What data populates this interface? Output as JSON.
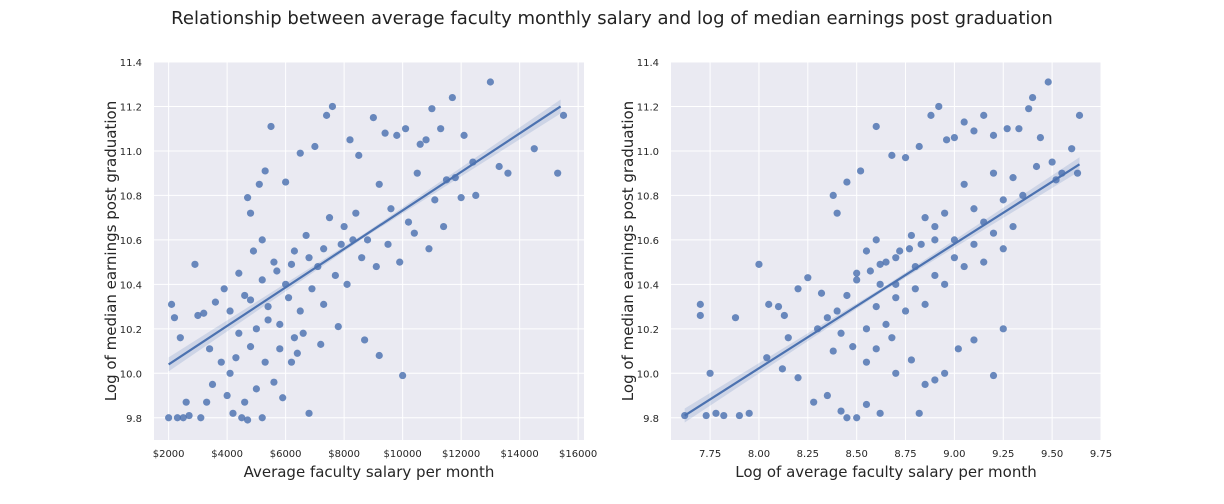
{
  "figure": {
    "title": "Relationship between average faculty monthly salary and log of median earnings post graduation"
  },
  "style": {
    "background": "#eaeaf2",
    "grid": "#ffffff",
    "point_color": "#4c72b0",
    "line_color": "#4c72b0",
    "ci_color": "#4c72b0"
  },
  "chart_data": [
    {
      "type": "scatter",
      "title": "",
      "xlabel": "Average faculty salary per month",
      "ylabel": "Log of median earnings post graduation",
      "xlim": [
        1500,
        16200
      ],
      "ylim": [
        9.7,
        11.4
      ],
      "xticks": [
        2000,
        4000,
        6000,
        8000,
        10000,
        12000,
        14000,
        16000
      ],
      "xtick_labels": [
        "$2000",
        "$4000",
        "$6000",
        "$8000",
        "$10000",
        "$12000",
        "$14000",
        "$16000"
      ],
      "yticks": [
        9.8,
        10.0,
        10.2,
        10.4,
        10.6,
        10.8,
        11.0,
        11.2,
        11.4
      ],
      "ytick_labels": [
        "9.8",
        "10.0",
        "10.2",
        "10.4",
        "10.6",
        "10.8",
        "11.0",
        "11.2",
        "11.4"
      ],
      "grid": true,
      "regression": {
        "x1": 2000,
        "y1": 10.04,
        "x2": 15400,
        "y2": 11.2
      },
      "points": [
        [
          2000,
          9.8
        ],
        [
          2300,
          9.8
        ],
        [
          2500,
          9.8
        ],
        [
          2700,
          9.81
        ],
        [
          3100,
          9.8
        ],
        [
          4200,
          9.82
        ],
        [
          4500,
          9.8
        ],
        [
          4700,
          9.79
        ],
        [
          5200,
          9.8
        ],
        [
          6800,
          9.82
        ],
        [
          2100,
          10.31
        ],
        [
          2900,
          10.49
        ],
        [
          3200,
          10.27
        ],
        [
          3600,
          10.32
        ],
        [
          3900,
          10.38
        ],
        [
          3400,
          10.11
        ],
        [
          3800,
          10.05
        ],
        [
          4100,
          10.0
        ],
        [
          3500,
          9.95
        ],
        [
          4000,
          9.9
        ],
        [
          4600,
          9.87
        ],
        [
          5000,
          9.93
        ],
        [
          3300,
          9.87
        ],
        [
          2600,
          9.87
        ],
        [
          4300,
          10.07
        ],
        [
          2400,
          10.16
        ],
        [
          2200,
          10.25
        ],
        [
          3000,
          10.26
        ],
        [
          4800,
          10.33
        ],
        [
          5400,
          10.24
        ],
        [
          5500,
          11.11
        ],
        [
          5100,
          10.85
        ],
        [
          4700,
          10.79
        ],
        [
          4800,
          10.72
        ],
        [
          5300,
          10.91
        ],
        [
          6000,
          10.86
        ],
        [
          6500,
          10.99
        ],
        [
          7000,
          11.02
        ],
        [
          7400,
          11.16
        ],
        [
          7600,
          11.2
        ],
        [
          8200,
          11.05
        ],
        [
          8500,
          10.98
        ],
        [
          9000,
          11.15
        ],
        [
          9400,
          11.08
        ],
        [
          9800,
          11.07
        ],
        [
          10100,
          11.1
        ],
        [
          10600,
          11.03
        ],
        [
          10800,
          11.05
        ],
        [
          11000,
          11.19
        ],
        [
          11300,
          11.1
        ],
        [
          11700,
          11.24
        ],
        [
          12100,
          11.07
        ],
        [
          12400,
          10.95
        ],
        [
          13000,
          11.31
        ],
        [
          13600,
          10.9
        ],
        [
          14500,
          11.01
        ],
        [
          15300,
          10.9
        ],
        [
          15500,
          11.16
        ],
        [
          11500,
          10.87
        ],
        [
          12000,
          10.79
        ],
        [
          10000,
          9.99
        ],
        [
          9200,
          10.08
        ],
        [
          8700,
          10.15
        ],
        [
          7200,
          10.13
        ],
        [
          6600,
          10.18
        ],
        [
          6200,
          10.05
        ],
        [
          5600,
          9.96
        ],
        [
          5900,
          9.89
        ],
        [
          6400,
          10.09
        ],
        [
          7800,
          10.21
        ],
        [
          4400,
          10.45
        ],
        [
          4900,
          10.55
        ],
        [
          5200,
          10.6
        ],
        [
          5600,
          10.5
        ],
        [
          6000,
          10.4
        ],
        [
          6300,
          10.55
        ],
        [
          6700,
          10.62
        ],
        [
          7100,
          10.48
        ],
        [
          7500,
          10.7
        ],
        [
          8000,
          10.66
        ],
        [
          8400,
          10.72
        ],
        [
          8800,
          10.6
        ],
        [
          9200,
          10.85
        ],
        [
          9600,
          10.74
        ],
        [
          10200,
          10.68
        ],
        [
          10500,
          10.9
        ],
        [
          11100,
          10.78
        ],
        [
          11800,
          10.88
        ],
        [
          12500,
          10.8
        ],
        [
          13300,
          10.93
        ],
        [
          5000,
          10.2
        ],
        [
          5400,
          10.3
        ],
        [
          5800,
          10.22
        ],
        [
          6100,
          10.34
        ],
        [
          6500,
          10.28
        ],
        [
          6900,
          10.38
        ],
        [
          7300,
          10.31
        ],
        [
          7700,
          10.44
        ],
        [
          8100,
          10.4
        ],
        [
          8600,
          10.52
        ],
        [
          9100,
          10.48
        ],
        [
          9500,
          10.58
        ],
        [
          9900,
          10.5
        ],
        [
          10400,
          10.63
        ],
        [
          10900,
          10.56
        ],
        [
          11400,
          10.66
        ],
        [
          4600,
          10.35
        ],
        [
          5200,
          10.42
        ],
        [
          5700,
          10.46
        ],
        [
          6200,
          10.49
        ],
        [
          6800,
          10.52
        ],
        [
          7300,
          10.56
        ],
        [
          7900,
          10.58
        ],
        [
          8300,
          10.6
        ],
        [
          4100,
          10.28
        ],
        [
          4400,
          10.18
        ],
        [
          4800,
          10.12
        ],
        [
          5300,
          10.05
        ],
        [
          5800,
          10.11
        ],
        [
          6300,
          10.16
        ]
      ]
    },
    {
      "type": "scatter",
      "title": "",
      "xlabel": "Log of average faculty salary per month",
      "ylabel": "Log of median earnings post graduation",
      "xlim": [
        7.55,
        9.75
      ],
      "ylim": [
        9.7,
        11.4
      ],
      "xticks": [
        7.75,
        8.0,
        8.25,
        8.5,
        8.75,
        9.0,
        9.25,
        9.5,
        9.75
      ],
      "xtick_labels": [
        "7.75",
        "8.00",
        "8.25",
        "8.50",
        "8.75",
        "9.00",
        "9.25",
        "9.50",
        "9.75"
      ],
      "yticks": [
        9.8,
        10.0,
        10.2,
        10.4,
        10.6,
        10.8,
        11.0,
        11.2,
        11.4
      ],
      "ytick_labels": [
        "9.8",
        "10.0",
        "10.2",
        "10.4",
        "10.6",
        "10.8",
        "11.0",
        "11.2",
        "11.4"
      ],
      "grid": true,
      "regression": {
        "x1": 7.62,
        "y1": 9.81,
        "x2": 9.64,
        "y2": 10.94
      },
      "points": [
        [
          7.62,
          9.81
        ],
        [
          7.73,
          9.81
        ],
        [
          7.78,
          9.82
        ],
        [
          7.82,
          9.81
        ],
        [
          7.9,
          9.81
        ],
        [
          7.95,
          9.82
        ],
        [
          8.0,
          10.49
        ],
        [
          7.7,
          10.31
        ],
        [
          7.7,
          10.26
        ],
        [
          7.88,
          10.25
        ],
        [
          8.05,
          10.31
        ],
        [
          8.1,
          10.3
        ],
        [
          8.13,
          10.26
        ],
        [
          8.15,
          10.16
        ],
        [
          8.2,
          10.38
        ],
        [
          8.25,
          10.43
        ],
        [
          8.32,
          10.36
        ],
        [
          7.75,
          10.0
        ],
        [
          8.04,
          10.07
        ],
        [
          8.12,
          10.02
        ],
        [
          8.2,
          9.98
        ],
        [
          8.28,
          9.87
        ],
        [
          8.35,
          9.9
        ],
        [
          8.42,
          9.83
        ],
        [
          8.55,
          9.86
        ],
        [
          8.45,
          9.8
        ],
        [
          8.5,
          9.8
        ],
        [
          8.62,
          9.82
        ],
        [
          8.82,
          9.82
        ],
        [
          8.9,
          9.97
        ],
        [
          8.95,
          10.0
        ],
        [
          9.2,
          9.99
        ],
        [
          9.25,
          10.2
        ],
        [
          9.1,
          10.15
        ],
        [
          9.02,
          10.11
        ],
        [
          8.6,
          11.11
        ],
        [
          8.45,
          10.86
        ],
        [
          8.38,
          10.8
        ],
        [
          8.4,
          10.72
        ],
        [
          8.52,
          10.91
        ],
        [
          8.68,
          10.98
        ],
        [
          8.75,
          10.97
        ],
        [
          8.82,
          11.02
        ],
        [
          8.88,
          11.16
        ],
        [
          8.92,
          11.2
        ],
        [
          8.96,
          11.05
        ],
        [
          9.0,
          11.06
        ],
        [
          9.05,
          11.13
        ],
        [
          9.1,
          11.09
        ],
        [
          9.15,
          11.16
        ],
        [
          9.2,
          11.07
        ],
        [
          9.27,
          11.1
        ],
        [
          9.33,
          11.1
        ],
        [
          9.38,
          11.19
        ],
        [
          9.4,
          11.24
        ],
        [
          9.44,
          11.06
        ],
        [
          9.48,
          11.31
        ],
        [
          9.5,
          10.95
        ],
        [
          9.52,
          10.87
        ],
        [
          9.55,
          10.9
        ],
        [
          9.6,
          11.01
        ],
        [
          9.63,
          10.9
        ],
        [
          9.64,
          11.16
        ],
        [
          8.5,
          10.45
        ],
        [
          8.55,
          10.55
        ],
        [
          8.6,
          10.6
        ],
        [
          8.65,
          10.5
        ],
        [
          8.7,
          10.4
        ],
        [
          8.72,
          10.55
        ],
        [
          8.78,
          10.62
        ],
        [
          8.8,
          10.48
        ],
        [
          8.85,
          10.7
        ],
        [
          8.9,
          10.66
        ],
        [
          8.95,
          10.72
        ],
        [
          9.0,
          10.6
        ],
        [
          9.05,
          10.85
        ],
        [
          9.1,
          10.74
        ],
        [
          9.15,
          10.68
        ],
        [
          9.2,
          10.9
        ],
        [
          9.25,
          10.78
        ],
        [
          9.3,
          10.88
        ],
        [
          9.35,
          10.8
        ],
        [
          9.42,
          10.93
        ],
        [
          8.55,
          10.2
        ],
        [
          8.6,
          10.3
        ],
        [
          8.65,
          10.22
        ],
        [
          8.7,
          10.34
        ],
        [
          8.75,
          10.28
        ],
        [
          8.8,
          10.38
        ],
        [
          8.85,
          10.31
        ],
        [
          8.9,
          10.44
        ],
        [
          8.95,
          10.4
        ],
        [
          9.0,
          10.52
        ],
        [
          9.05,
          10.48
        ],
        [
          9.1,
          10.58
        ],
        [
          9.15,
          10.5
        ],
        [
          9.2,
          10.63
        ],
        [
          9.25,
          10.56
        ],
        [
          9.3,
          10.66
        ],
        [
          8.45,
          10.35
        ],
        [
          8.5,
          10.42
        ],
        [
          8.57,
          10.46
        ],
        [
          8.62,
          10.49
        ],
        [
          8.7,
          10.52
        ],
        [
          8.77,
          10.56
        ],
        [
          8.83,
          10.58
        ],
        [
          8.9,
          10.6
        ],
        [
          8.4,
          10.28
        ],
        [
          8.42,
          10.18
        ],
        [
          8.48,
          10.12
        ],
        [
          8.55,
          10.05
        ],
        [
          8.6,
          10.11
        ],
        [
          8.68,
          10.16
        ],
        [
          8.3,
          10.2
        ],
        [
          8.35,
          10.25
        ],
        [
          8.38,
          10.1
        ],
        [
          8.7,
          10.0
        ],
        [
          8.78,
          10.06
        ],
        [
          8.85,
          9.95
        ],
        [
          8.62,
          10.4
        ]
      ]
    }
  ]
}
